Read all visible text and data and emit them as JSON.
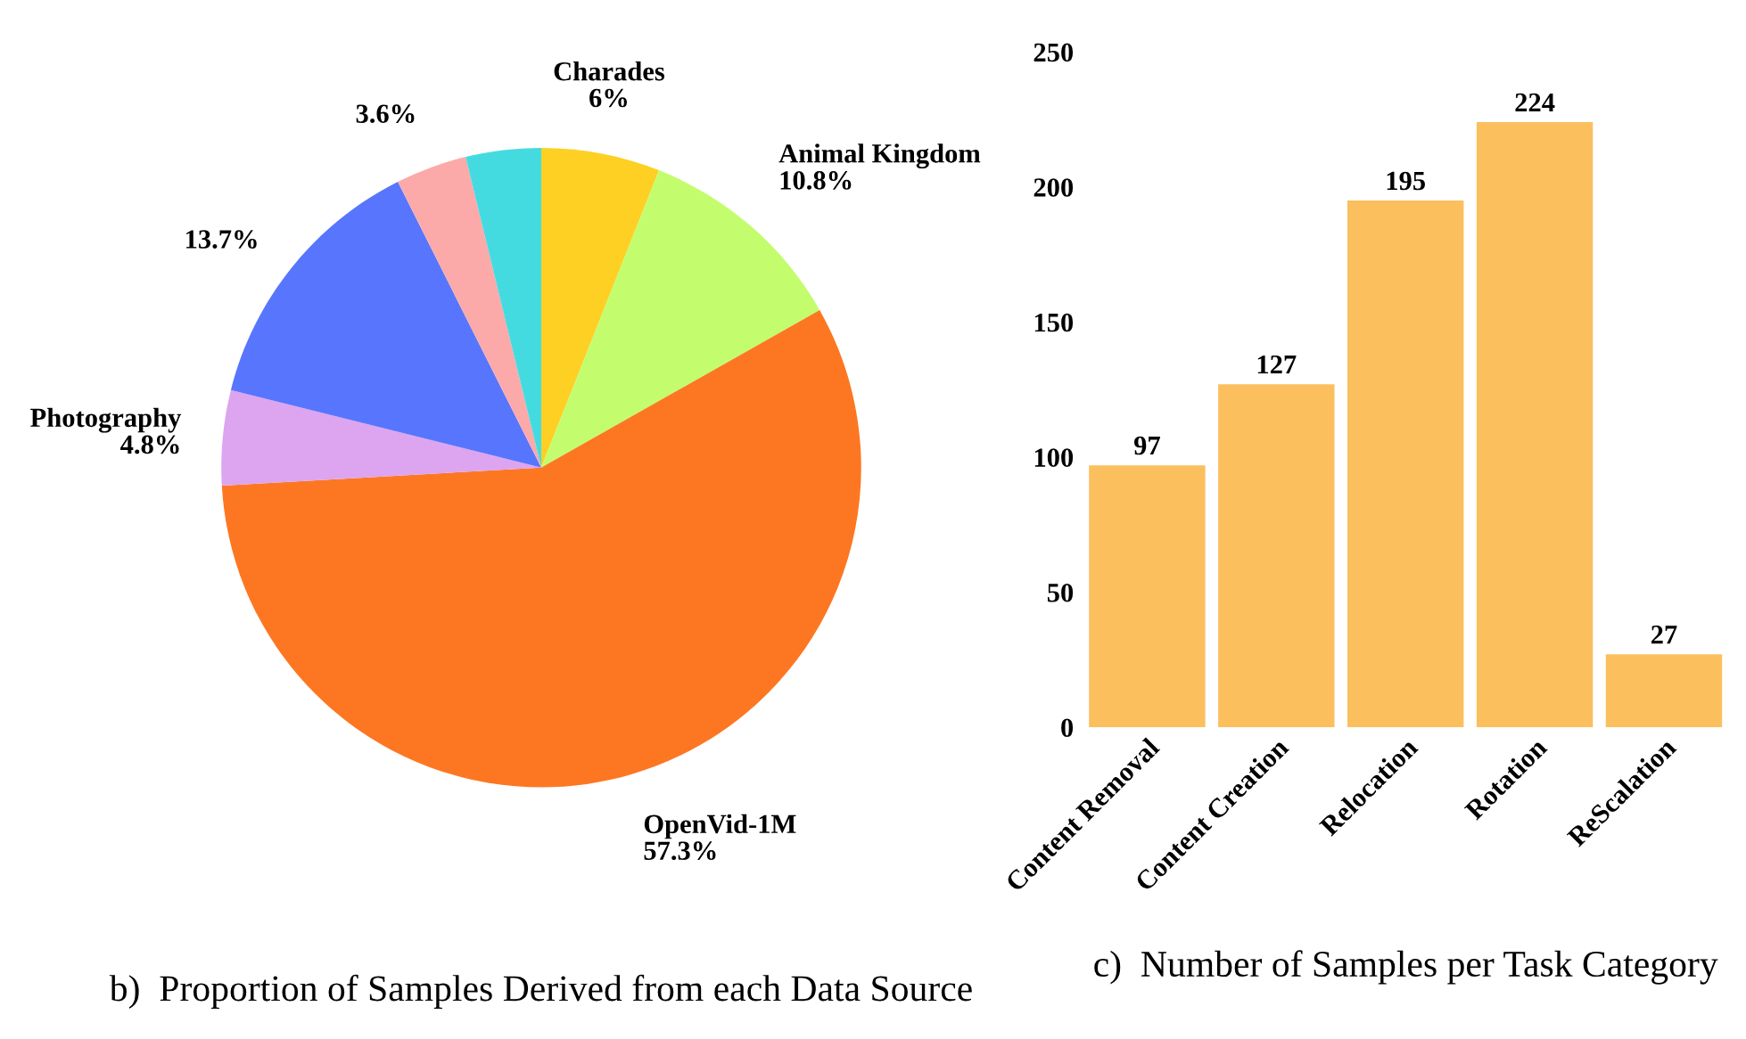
{
  "chart_data": [
    {
      "type": "pie",
      "title": "b)  Proportion of Samples Derived from each Data Source",
      "categories": [
        "Charades",
        "Animal Kingdom",
        "OpenVid-1M",
        "Photography",
        null,
        null,
        null
      ],
      "values": [
        6,
        10.8,
        57.3,
        4.8,
        13.7,
        3.6,
        3.8
      ],
      "value_labels": [
        "6%",
        "10.8%",
        "57.3%",
        "4.8%",
        "13.7%",
        "3.6%",
        null
      ],
      "colors": [
        "#fdd023",
        "#c3fd6e",
        "#fd7722",
        "#dda4f0",
        "#5875fd",
        "#fca9a9",
        "#44dbe0"
      ]
    },
    {
      "type": "bar",
      "title": "c)  Number of Samples per Task Category",
      "categories": [
        "Content Removal",
        "Content Creation",
        "Relocation",
        "Rotation",
        "ReScalation"
      ],
      "values": [
        97,
        127,
        195,
        224,
        27
      ],
      "color": "#fbbf5e",
      "data_labels": true,
      "ylim": [
        0,
        250
      ],
      "yticks": [
        0,
        50,
        100,
        150,
        200,
        250
      ],
      "grid": false
    }
  ]
}
